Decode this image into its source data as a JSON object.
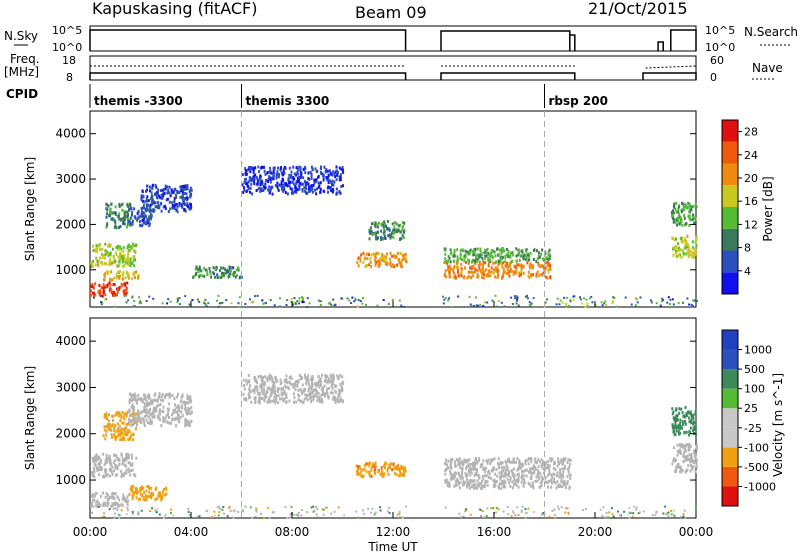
{
  "header": {
    "title": "Kapuskasing (fitACF)",
    "beam": "Beam 09",
    "date": "21/Oct/2015"
  },
  "top_panels": {
    "nsky": {
      "label": "N.Sky",
      "ticks": [
        "10^5",
        "10^0"
      ]
    },
    "nsearch": {
      "label": "N.Search",
      "ticks": [
        "10^5",
        "10^0"
      ]
    },
    "freq": {
      "label_1": "Freq.",
      "label_2": "[MHz]",
      "ticks": [
        "18",
        "8"
      ]
    },
    "nave": {
      "label": "Nave",
      "ticks": [
        "60",
        "0"
      ]
    },
    "cpid": {
      "label": "CPID"
    },
    "modes": [
      {
        "name": "themis -3300",
        "start_hour": 0
      },
      {
        "name": "themis 3300",
        "start_hour": 6
      },
      {
        "name": "rbsp 200",
        "start_hour": 18
      }
    ]
  },
  "colors": {
    "power_scale": [
      "#1010ee",
      "#2e4fc0",
      "#3a7a5a",
      "#55bb33",
      "#c8c820",
      "#f08a10",
      "#f05a10",
      "#e01010"
    ],
    "velocity_scale": [
      "#e01010",
      "#f05a10",
      "#f0a010",
      "#c8c8c8",
      "#c8c8c8",
      "#55bb33",
      "#3a8a5a",
      "#2e4fc0",
      "#2040c0"
    ],
    "ground_scatter": "#b4b4b4"
  },
  "chart_data": [
    {
      "type": "heatmap",
      "name": "power",
      "ylabel": "Slant Range [km]",
      "yticks": [
        1000,
        2000,
        3000,
        4000
      ],
      "ylim": [
        180,
        4500
      ],
      "xlim": [
        0,
        24
      ],
      "colorbar": {
        "label": "Power [dB]",
        "ticks": [
          4,
          8,
          12,
          16,
          20,
          24,
          28
        ],
        "range": [
          0,
          30
        ]
      },
      "data_gaps_hours": [
        [
          12.5,
          13.9
        ]
      ],
      "echo_regions": [
        {
          "t": [
            0.0,
            1.5
          ],
          "range_km": [
            450,
            750
          ],
          "value": 26
        },
        {
          "t": [
            0.0,
            1.8
          ],
          "range_km": [
            1100,
            1600
          ],
          "value": 16
        },
        {
          "t": [
            0.5,
            1.9
          ],
          "range_km": [
            800,
            1000
          ],
          "value": 18
        },
        {
          "t": [
            0.6,
            1.6
          ],
          "range_km": [
            1950,
            2500
          ],
          "value": 10
        },
        {
          "t": [
            1.5,
            2.5
          ],
          "range_km": [
            2000,
            2400
          ],
          "value": 6
        },
        {
          "t": [
            2.0,
            4.0
          ],
          "range_km": [
            2300,
            2900
          ],
          "value": 5
        },
        {
          "t": [
            4.0,
            6.0
          ],
          "range_km": [
            850,
            1100
          ],
          "value": 10
        },
        {
          "t": [
            6.0,
            10.0
          ],
          "range_km": [
            2700,
            3300
          ],
          "value": 4
        },
        {
          "t": [
            10.5,
            12.5
          ],
          "range_km": [
            1100,
            1400
          ],
          "value": 20
        },
        {
          "t": [
            11.0,
            12.5
          ],
          "range_km": [
            1700,
            2100
          ],
          "value": 10
        },
        {
          "t": [
            14.0,
            18.2
          ],
          "range_km": [
            850,
            1200
          ],
          "value": 21
        },
        {
          "t": [
            14.0,
            18.2
          ],
          "range_km": [
            1200,
            1500
          ],
          "value": 12
        },
        {
          "t": [
            23.0,
            24.0
          ],
          "range_km": [
            1300,
            1800
          ],
          "value": 16
        },
        {
          "t": [
            23.0,
            24.0
          ],
          "range_km": [
            2000,
            2500
          ],
          "value": 12
        }
      ]
    },
    {
      "type": "heatmap",
      "name": "velocity",
      "ylabel": "Slant Range [km]",
      "xlabel": "Time UT",
      "yticks": [
        1000,
        2000,
        3000,
        4000
      ],
      "ylim": [
        180,
        4500
      ],
      "xlim": [
        0,
        24
      ],
      "xticks": [
        "00:00",
        "04:00",
        "08:00",
        "12:00",
        "16:00",
        "20:00",
        "00:00"
      ],
      "colorbar": {
        "label": "Velocity [m s^-1]",
        "ticks": [
          1000,
          500,
          100,
          25,
          -25,
          -100,
          -500,
          -1000
        ]
      },
      "data_gaps_hours": [
        [
          12.5,
          13.9
        ]
      ],
      "echo_regions": [
        {
          "t": [
            0.0,
            1.8
          ],
          "range_km": [
            1100,
            1600
          ],
          "value": 25,
          "ground_scatter": true
        },
        {
          "t": [
            0.0,
            1.5
          ],
          "range_km": [
            450,
            750
          ],
          "value": 25,
          "ground_scatter": true
        },
        {
          "t": [
            0.5,
            1.8
          ],
          "range_km": [
            1900,
            2500
          ],
          "value": -200
        },
        {
          "t": [
            1.5,
            4.0
          ],
          "range_km": [
            2200,
            2900
          ],
          "value": 25,
          "ground_scatter": true
        },
        {
          "t": [
            1.5,
            3.0
          ],
          "range_km": [
            600,
            900
          ],
          "value": -300
        },
        {
          "t": [
            6.0,
            10.0
          ],
          "range_km": [
            2700,
            3300
          ],
          "value": 25,
          "ground_scatter": true
        },
        {
          "t": [
            10.5,
            12.5
          ],
          "range_km": [
            1100,
            1400
          ],
          "value": -400
        },
        {
          "t": [
            14.0,
            19.0
          ],
          "range_km": [
            850,
            1500
          ],
          "value": 25,
          "ground_scatter": true
        },
        {
          "t": [
            23.0,
            24.0
          ],
          "range_km": [
            1200,
            1800
          ],
          "value": 25,
          "ground_scatter": true
        },
        {
          "t": [
            23.0,
            24.0
          ],
          "range_km": [
            2000,
            2600
          ],
          "value": 300
        }
      ]
    }
  ]
}
